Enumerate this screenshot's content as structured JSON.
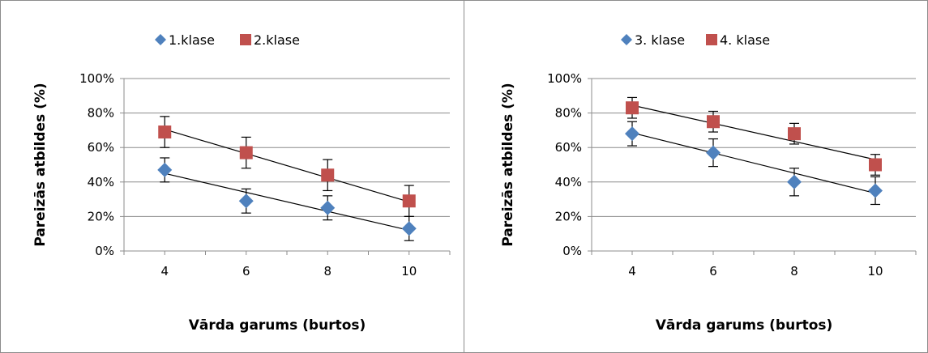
{
  "chart_data": [
    {
      "type": "scatter",
      "xlabel": "Vārda garums (burtos)",
      "ylabel": "Pareizās atbildes (%)",
      "x": [
        4,
        6,
        8,
        10
      ],
      "x_tick_labels": [
        "4",
        "6",
        "8",
        "10"
      ],
      "y_tick_labels": [
        "0%",
        "20%",
        "40%",
        "60%",
        "80%",
        "100%"
      ],
      "ylim": [
        0,
        100
      ],
      "grid": "horizontal",
      "legend_position": "top",
      "series": [
        {
          "name": "1.klase",
          "marker": "diamond",
          "color": "#4f81bd",
          "values": [
            47,
            29,
            25,
            13
          ],
          "errors": [
            7,
            7,
            7,
            7
          ],
          "trendline": [
            45,
            34,
            23,
            12
          ]
        },
        {
          "name": "2.klase",
          "marker": "square",
          "color": "#c0504d",
          "values": [
            69,
            57,
            44,
            29
          ],
          "errors": [
            9,
            9,
            9,
            9
          ],
          "trendline": [
            70.5,
            56.5,
            42.5,
            28.5
          ]
        }
      ]
    },
    {
      "type": "scatter",
      "xlabel": "Vārda garums (burtos)",
      "ylabel": "Pareizās atbildes (%)",
      "x": [
        4,
        6,
        8,
        10
      ],
      "x_tick_labels": [
        "4",
        "6",
        "8",
        "10"
      ],
      "y_tick_labels": [
        "0%",
        "20%",
        "40%",
        "60%",
        "80%",
        "100%"
      ],
      "ylim": [
        0,
        100
      ],
      "grid": "horizontal",
      "legend_position": "top",
      "series": [
        {
          "name": "3. klase",
          "marker": "diamond",
          "color": "#4f81bd",
          "values": [
            68,
            57,
            40,
            35
          ],
          "errors": [
            7,
            8,
            8,
            8
          ],
          "trendline": [
            68.5,
            57,
            45,
            33.5
          ]
        },
        {
          "name": "4. klase",
          "marker": "square",
          "color": "#c0504d",
          "values": [
            83,
            75,
            68,
            50
          ],
          "errors": [
            6,
            6,
            6,
            6
          ],
          "trendline": [
            84.5,
            74,
            63.5,
            53
          ]
        }
      ]
    }
  ]
}
